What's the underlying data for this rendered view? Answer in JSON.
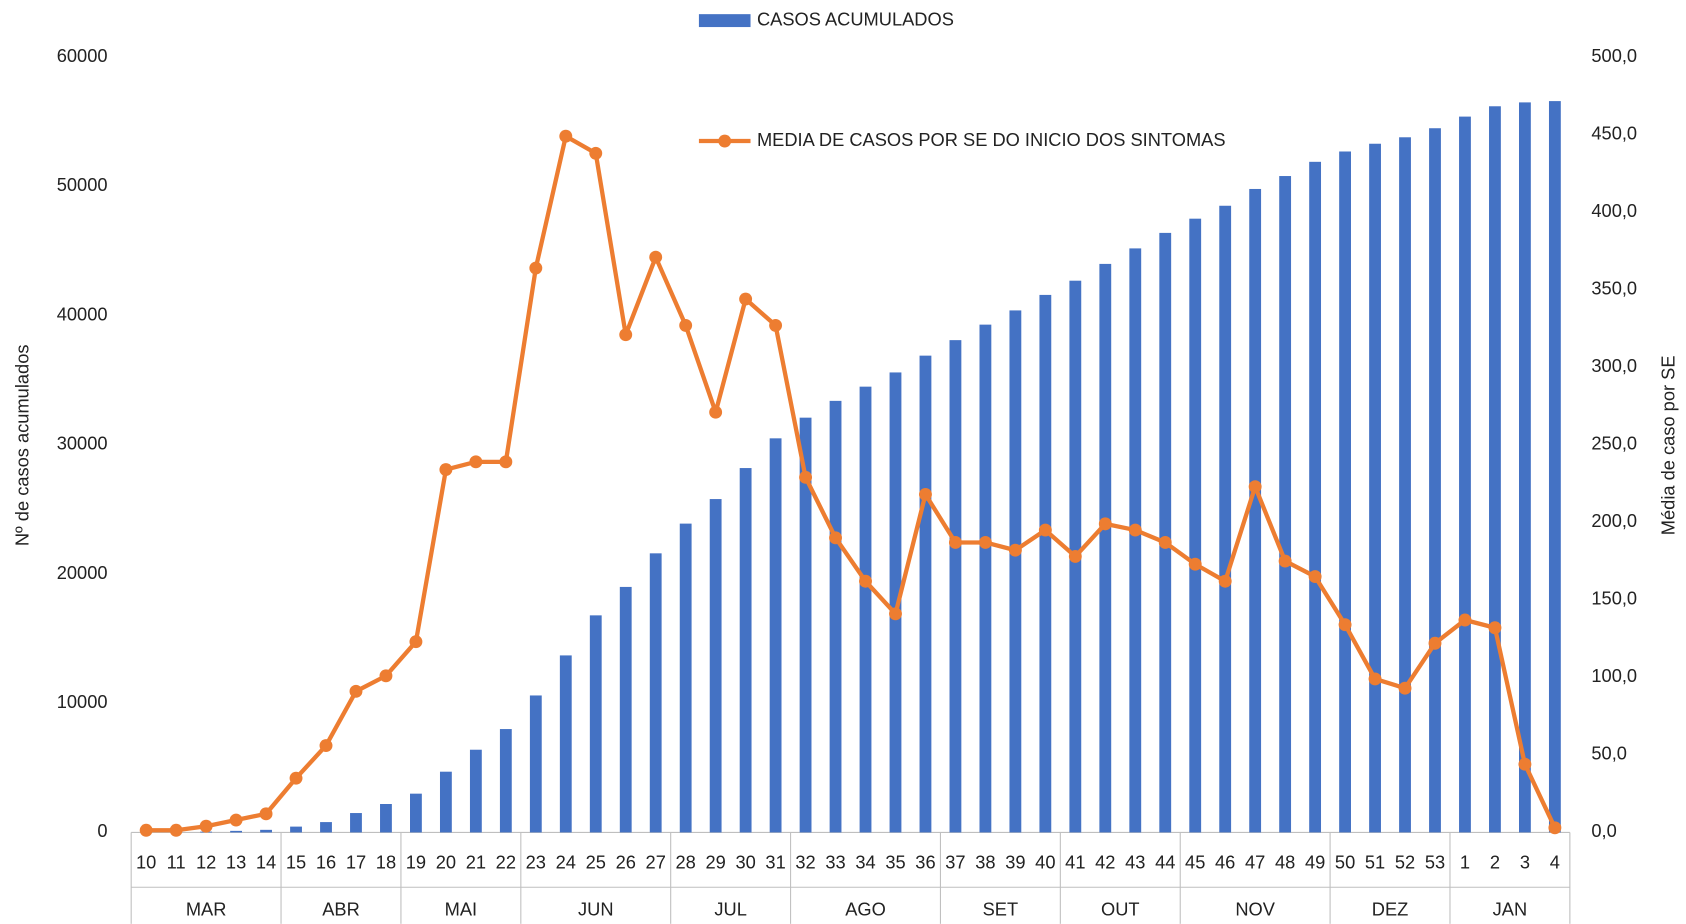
{
  "chart_data": {
    "type": "combo",
    "y_label": "Nº de casos acumulados",
    "y2_label": "Média de caso por SE",
    "ylim": [
      0,
      60000
    ],
    "yticks": [
      0,
      10000,
      20000,
      30000,
      40000,
      50000,
      60000
    ],
    "y2lim": [
      0,
      500
    ],
    "y2ticks": [
      {
        "value": 0,
        "label": "0,0"
      },
      {
        "value": 50,
        "label": "50,0"
      },
      {
        "value": 100,
        "label": "100,0"
      },
      {
        "value": 150,
        "label": "150,0"
      },
      {
        "value": 200,
        "label": "200,0"
      },
      {
        "value": 250,
        "label": "250,0"
      },
      {
        "value": 300,
        "label": "300,0"
      },
      {
        "value": 350,
        "label": "350,0"
      },
      {
        "value": 400,
        "label": "400,0"
      },
      {
        "value": 450,
        "label": "450,0"
      },
      {
        "value": 500,
        "label": "500,0"
      }
    ],
    "category_groups": [
      {
        "label": "MAR",
        "categories": [
          "10",
          "11",
          "12",
          "13",
          "14"
        ]
      },
      {
        "label": "ABR",
        "categories": [
          "15",
          "16",
          "17",
          "18"
        ]
      },
      {
        "label": "MAI",
        "categories": [
          "19",
          "20",
          "21",
          "22"
        ]
      },
      {
        "label": "JUN",
        "categories": [
          "23",
          "24",
          "25",
          "26",
          "27"
        ]
      },
      {
        "label": "JUL",
        "categories": [
          "28",
          "29",
          "30",
          "31"
        ]
      },
      {
        "label": "AGO",
        "categories": [
          "32",
          "33",
          "34",
          "35",
          "36"
        ]
      },
      {
        "label": "SET",
        "categories": [
          "37",
          "38",
          "39",
          "40"
        ]
      },
      {
        "label": "OUT",
        "categories": [
          "41",
          "42",
          "43",
          "44"
        ]
      },
      {
        "label": "NOV",
        "categories": [
          "45",
          "46",
          "47",
          "48",
          "49"
        ]
      },
      {
        "label": "DEZ",
        "categories": [
          "50",
          "51",
          "52",
          "53"
        ]
      },
      {
        "label": "JAN",
        "categories": [
          "1",
          "2",
          "3",
          "4"
        ]
      }
    ],
    "series": [
      {
        "name": "CASOS ACUMULADOS",
        "type": "bar",
        "color": "#4472c4",
        "values": [
          10,
          30,
          60,
          120,
          200,
          450,
          800,
          1500,
          2200,
          3000,
          4700,
          6400,
          8000,
          10600,
          13700,
          16800,
          19000,
          21600,
          23900,
          25800,
          28200,
          30500,
          32100,
          33400,
          34500,
          35600,
          36900,
          38100,
          39300,
          40400,
          41600,
          42700,
          44000,
          45200,
          46400,
          47500,
          48500,
          49800,
          50800,
          51900,
          52700,
          53300,
          53800,
          54500,
          55400,
          56200,
          56500,
          56600
        ]
      },
      {
        "name": "MEDIA DE CASOS POR SE DO INICIO DOS SINTOMAS",
        "type": "line",
        "axis": "y2",
        "color": "#ed7d31",
        "values": [
          1.4,
          1.4,
          4,
          8,
          12,
          35,
          56,
          91,
          101,
          123,
          234,
          239,
          239,
          364,
          449,
          438,
          321,
          371,
          327,
          271,
          344,
          327,
          229,
          190,
          162,
          141,
          218,
          187,
          187,
          182,
          195,
          178,
          199,
          195,
          187,
          173,
          162,
          223,
          175,
          165,
          134,
          99,
          93,
          122,
          137,
          132,
          44,
          3
        ]
      }
    ]
  }
}
